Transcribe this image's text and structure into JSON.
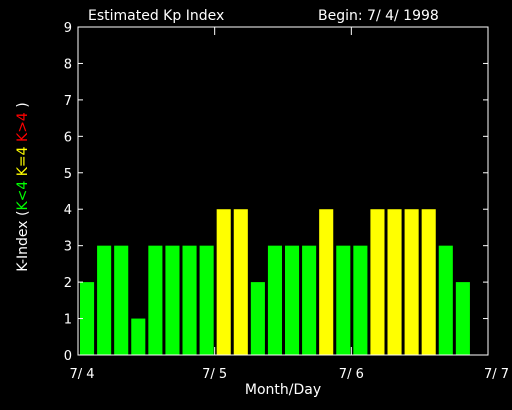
{
  "chart_data": {
    "type": "bar",
    "title": "Estimated Kp Index",
    "begin_label": "Begin: 7/ 4/ 1998",
    "xlabel": "Month/Day",
    "ylabel_parts": [
      {
        "text": "K-Index (",
        "color": "#ffffff"
      },
      {
        "text": "K<4",
        "color": "#00ff00"
      },
      {
        "text": " K=4",
        "color": "#ffff00"
      },
      {
        "text": " K>4",
        "color": "#ff0000"
      },
      {
        "text": " )",
        "color": "#ffffff"
      }
    ],
    "ylim": [
      0,
      9
    ],
    "yticks": [
      "0",
      "1",
      "2",
      "3",
      "4",
      "5",
      "6",
      "7",
      "8",
      "9"
    ],
    "xticks": [
      "7/ 4",
      "7/ 5",
      "7/ 6",
      "7/ 7"
    ],
    "bars_per_day": 8,
    "values": [
      2,
      3,
      3,
      1,
      3,
      3,
      3,
      3,
      4,
      4,
      2,
      3,
      3,
      3,
      4,
      3,
      3,
      4,
      4,
      4,
      4,
      3,
      2
    ],
    "colors": {
      "below": "#00ff00",
      "equal": "#ffff00",
      "above": "#ff0000",
      "axes": "#ffffff",
      "background": "#000000"
    }
  }
}
